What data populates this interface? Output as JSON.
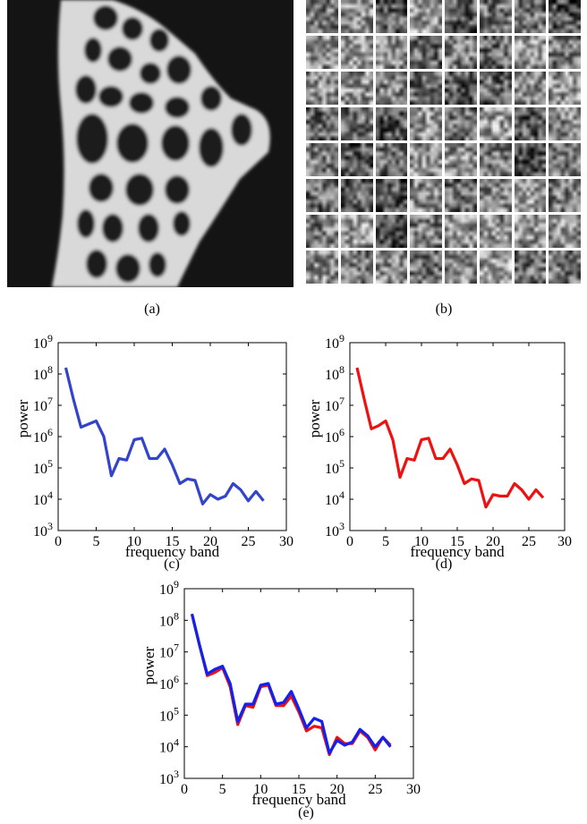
{
  "captions": {
    "a": "(a)",
    "b": "(b)",
    "c": "(c)",
    "d": "(d)",
    "e": "(e)"
  },
  "colors": {
    "blue": "#3344cc",
    "red": "#ee1111",
    "blue_dark": "#1122ee"
  },
  "charts": [
    {
      "id": "c",
      "xlabel": "frequency band",
      "ylabel": "power"
    },
    {
      "id": "d",
      "xlabel": "frequency band",
      "ylabel": "power"
    },
    {
      "id": "e",
      "xlabel": "frequency band",
      "ylabel": "power"
    }
  ],
  "chart_data": [
    {
      "type": "line",
      "title": "",
      "xlabel": "frequency band",
      "ylabel": "power",
      "xlim": [
        0,
        30
      ],
      "ylim_log10": [
        3,
        9
      ],
      "x_ticks": [
        0,
        5,
        10,
        15,
        20,
        25,
        30
      ],
      "y_ticks": [
        "10^3",
        "10^4",
        "10^5",
        "10^6",
        "10^7",
        "10^8",
        "10^9"
      ],
      "grid": false,
      "series": [
        {
          "color": "#3344cc",
          "x": [
            1,
            2,
            3,
            4,
            5,
            6,
            7,
            8,
            9,
            10,
            11,
            12,
            13,
            14,
            15,
            16,
            17,
            18,
            19,
            20,
            21,
            22,
            23,
            24,
            25,
            26,
            27
          ],
          "log10_y": [
            8.2,
            7.2,
            6.3,
            6.4,
            6.5,
            6.0,
            4.75,
            5.3,
            5.25,
            5.9,
            5.95,
            5.3,
            5.3,
            5.6,
            5.1,
            4.5,
            4.65,
            4.6,
            3.85,
            4.15,
            4.0,
            4.1,
            4.5,
            4.3,
            3.95,
            4.25,
            3.95
          ]
        }
      ]
    },
    {
      "type": "line",
      "title": "",
      "xlabel": "frequency band",
      "ylabel": "power",
      "xlim": [
        0,
        30
      ],
      "ylim_log10": [
        3,
        9
      ],
      "x_ticks": [
        0,
        5,
        10,
        15,
        20,
        25,
        30
      ],
      "y_ticks": [
        "10^3",
        "10^4",
        "10^5",
        "10^6",
        "10^7",
        "10^8",
        "10^9"
      ],
      "grid": false,
      "series": [
        {
          "color": "#ee1111",
          "x": [
            1,
            2,
            3,
            4,
            5,
            6,
            7,
            8,
            9,
            10,
            11,
            12,
            13,
            14,
            15,
            16,
            17,
            18,
            19,
            20,
            21,
            22,
            23,
            24,
            25,
            26,
            27
          ],
          "log10_y": [
            8.2,
            7.2,
            6.25,
            6.35,
            6.5,
            5.9,
            4.7,
            5.3,
            5.25,
            5.9,
            5.95,
            5.3,
            5.3,
            5.6,
            5.1,
            4.5,
            4.65,
            4.6,
            3.75,
            4.15,
            4.1,
            4.1,
            4.5,
            4.3,
            4.0,
            4.3,
            4.05
          ]
        }
      ]
    },
    {
      "type": "line",
      "title": "",
      "xlabel": "frequency band",
      "ylabel": "power",
      "xlim": [
        0,
        30
      ],
      "ylim_log10": [
        3,
        9
      ],
      "x_ticks": [
        0,
        5,
        10,
        15,
        20,
        25,
        30
      ],
      "y_ticks": [
        "10^3",
        "10^4",
        "10^5",
        "10^6",
        "10^7",
        "10^8",
        "10^9"
      ],
      "grid": false,
      "series": [
        {
          "color": "#ee1111",
          "x": [
            1,
            2,
            3,
            4,
            5,
            6,
            7,
            8,
            9,
            10,
            11,
            12,
            13,
            14,
            15,
            16,
            17,
            18,
            19,
            20,
            21,
            22,
            23,
            24,
            25,
            26,
            27
          ],
          "log10_y": [
            8.2,
            7.2,
            6.25,
            6.35,
            6.5,
            5.9,
            4.7,
            5.3,
            5.25,
            5.9,
            5.95,
            5.3,
            5.3,
            5.6,
            5.1,
            4.5,
            4.65,
            4.6,
            3.75,
            4.3,
            4.1,
            4.1,
            4.5,
            4.3,
            3.9,
            4.3,
            4.05
          ]
        },
        {
          "color": "#1122ee",
          "x": [
            1,
            2,
            3,
            4,
            5,
            6,
            7,
            8,
            9,
            10,
            11,
            12,
            13,
            14,
            15,
            16,
            17,
            18,
            19,
            20,
            21,
            22,
            23,
            24,
            25,
            26,
            27
          ],
          "log10_y": [
            8.2,
            7.2,
            6.3,
            6.45,
            6.55,
            6.0,
            4.8,
            5.35,
            5.35,
            5.95,
            6.0,
            5.35,
            5.4,
            5.75,
            5.2,
            4.6,
            4.9,
            4.8,
            3.8,
            4.2,
            4.05,
            4.15,
            4.55,
            4.35,
            4.0,
            4.3,
            4.0
          ]
        }
      ]
    }
  ]
}
